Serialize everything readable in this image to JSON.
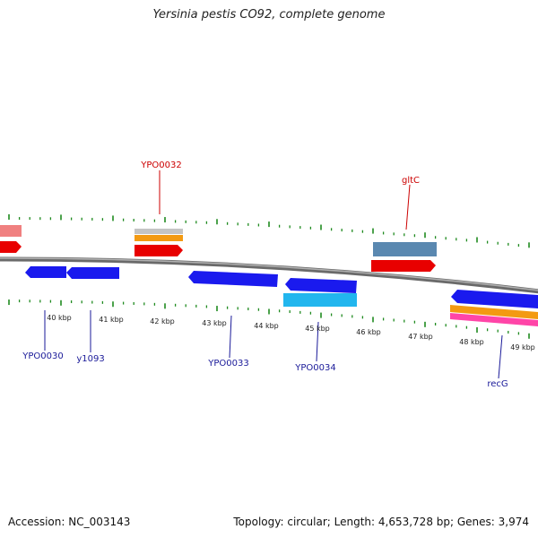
{
  "title": "Yersinia pestis CO92, complete genome",
  "footer": {
    "accession": "Accession: NC_003143",
    "stats": "Topology: circular; Length: 4,653,728 bp; Genes: 3,974"
  },
  "colors": {
    "backbone": "#8a8a8a",
    "tick": "#1f8a1f",
    "forward_gene": "#e80000",
    "forward_label": "#cc0000",
    "reverse_gene": "#1a1aee",
    "reverse_label": "#1a1a99",
    "orange": "#f39a12",
    "grey": "#c4c4c4",
    "steelblue": "#5a88b0",
    "cyan": "#22b6ee",
    "pink": "#ff45a8",
    "light_red": "#f08080"
  },
  "kbp_labels": [
    "40 kbp",
    "41 kbp",
    "42 kbp",
    "43 kbp",
    "44 kbp",
    "45 kbp",
    "46 kbp",
    "47 kbp",
    "48 kbp",
    "49 kbp"
  ],
  "forward_labels": [
    "YPO0032",
    "gltC"
  ],
  "reverse_labels": [
    "YPO0030",
    "y1093",
    "YPO0033",
    "YPO0034",
    "recG"
  ]
}
